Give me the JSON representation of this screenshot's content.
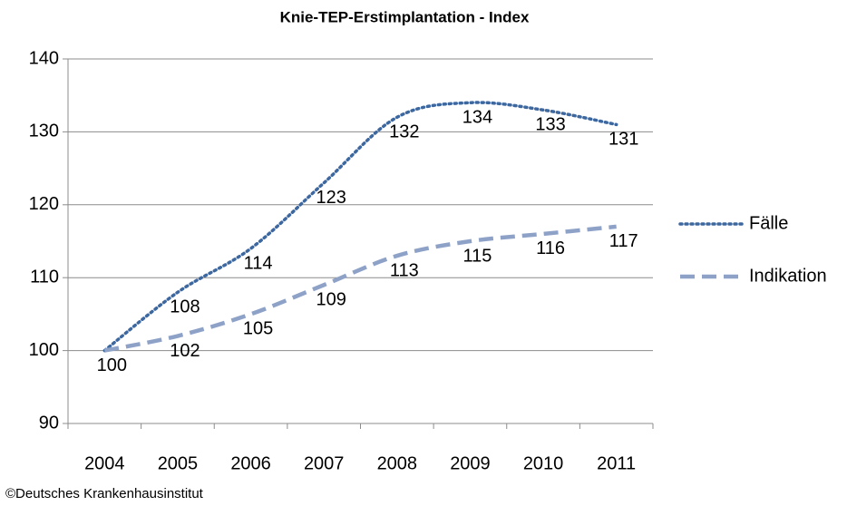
{
  "chart_data": {
    "type": "line",
    "title": "Knie-TEP-Erstimplantation  - Index",
    "categories": [
      "2004",
      "2005",
      "2006",
      "2007",
      "2008",
      "2009",
      "2010",
      "2011"
    ],
    "series": [
      {
        "name": "Fälle",
        "color": "#3d679f",
        "values": [
          100,
          108,
          114,
          123,
          132,
          134,
          133,
          131
        ]
      },
      {
        "name": "Indikation",
        "color": "#8ea2c8",
        "values": [
          100,
          102,
          105,
          109,
          113,
          115,
          116,
          117
        ]
      }
    ],
    "ylim": [
      90,
      140
    ],
    "yticks": [
      90,
      100,
      110,
      120,
      130,
      140
    ],
    "grid": true,
    "legend": "right",
    "source": "©Deutsches Krankenhausinstitut"
  }
}
